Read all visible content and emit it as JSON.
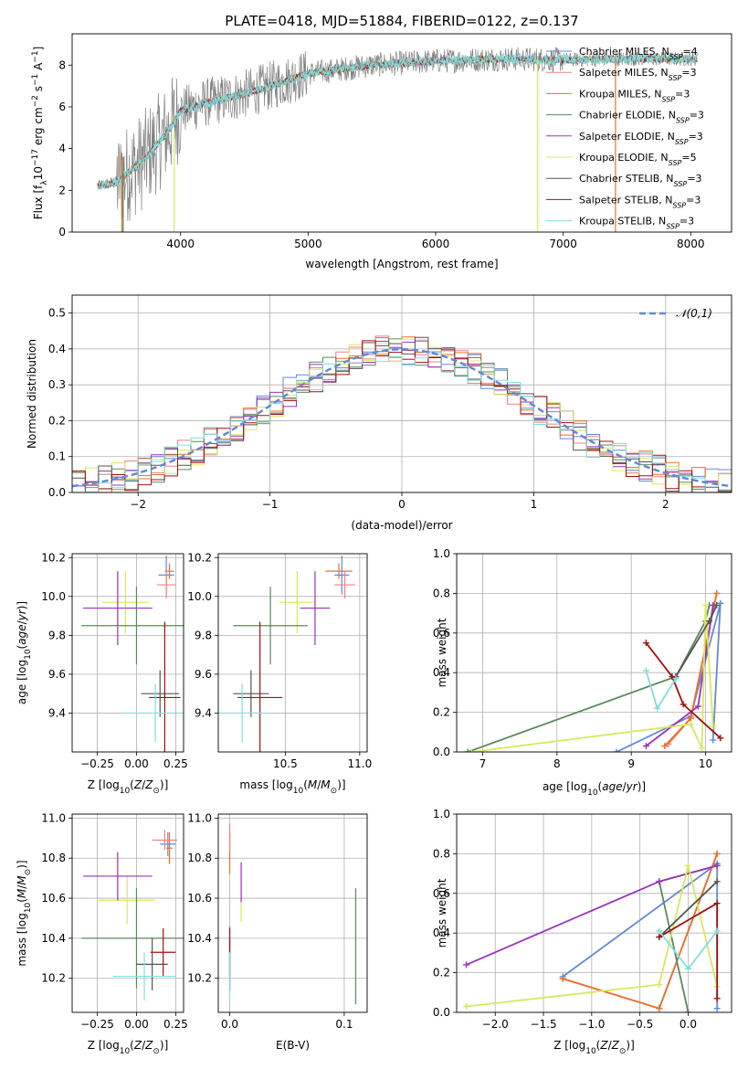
{
  "figure_title": "PLATE=0418, MJD=51884, FIBERID=0122, z=0.137",
  "models": [
    {
      "name": "Chabrier MILES, N",
      "sub": "SSP",
      "suffix": "=4",
      "color": "#6488d8"
    },
    {
      "name": "Salpeter MILES, N",
      "sub": "SSP",
      "suffix": "=3",
      "color": "#f08080"
    },
    {
      "name": "Kroupa MILES, N",
      "sub": "SSP",
      "suffix": "=3",
      "color": "#e8702a"
    },
    {
      "name": "Chabrier ELODIE, N",
      "sub": "SSP",
      "suffix": "=3",
      "color": "#5a8a5a"
    },
    {
      "name": "Salpeter ELODIE, N",
      "sub": "SSP",
      "suffix": "=3",
      "color": "#9933bb"
    },
    {
      "name": "Kroupa ELODIE, N",
      "sub": "SSP",
      "suffix": "=5",
      "color": "#d8e860"
    },
    {
      "name": "Chabrier STELIB, N",
      "sub": "SSP",
      "suffix": "=3",
      "color": "#555555"
    },
    {
      "name": "Salpeter STELIB, N",
      "sub": "SSP",
      "suffix": "=3",
      "color": "#a01010"
    },
    {
      "name": "Kroupa STELIB, N",
      "sub": "SSP",
      "suffix": "=3",
      "color": "#80dede"
    }
  ],
  "chart_data": [
    {
      "id": "spectrum",
      "type": "line",
      "xlabel": "wavelength [Angstrom, rest frame]",
      "ylabel": "Flux [f_λ 10^-17 erg cm^-2 s^-1 A^-1]",
      "xlim": [
        3150,
        8320
      ],
      "ylim": [
        0,
        9.5
      ],
      "xticks": [
        4000,
        5000,
        6000,
        7000,
        8000
      ],
      "yticks": [
        0,
        2,
        4,
        6,
        8
      ],
      "grid": false,
      "legend": "right",
      "continuum": {
        "x": [
          3350,
          3500,
          3700,
          3900,
          4000,
          4200,
          4500,
          4800,
          5000,
          5500,
          6000,
          6500,
          7000,
          7500,
          8000
        ],
        "y": [
          2.2,
          2.4,
          3.4,
          4.8,
          5.8,
          6.2,
          6.6,
          7.2,
          7.6,
          8.0,
          8.2,
          8.3,
          8.25,
          8.3,
          8.3
        ]
      },
      "spikes": [
        {
          "x": 3540,
          "ymin": 0,
          "ymax": 3.8,
          "color": "#e8702a"
        },
        {
          "x": 3550,
          "ymin": 0,
          "ymax": 3.6,
          "color": "#5a8a5a"
        },
        {
          "x": 3950,
          "ymin": 0,
          "ymax": 4.8,
          "color": "#d8e860"
        },
        {
          "x": 6800,
          "ymin": 0,
          "ymax": 8.3,
          "color": "#d8e860"
        },
        {
          "x": 7410,
          "ymin": 0,
          "ymax": 8.3,
          "color": "#e8702a"
        }
      ]
    },
    {
      "id": "residuals",
      "type": "histogram",
      "xlabel": "(data-model)/error",
      "ylabel": "Normed distribution",
      "xlim": [
        -2.5,
        2.5
      ],
      "ylim": [
        0,
        0.55
      ],
      "xticks": [
        -2,
        -1,
        0,
        1,
        2
      ],
      "yticks": [
        0.0,
        0.1,
        0.2,
        0.3,
        0.4,
        0.5
      ],
      "grid": true,
      "legend": "top-right",
      "legend_label": "𝒩(0,1)",
      "normal_curve": {
        "mean": 0,
        "sigma": 1,
        "color": "#6488d8"
      },
      "bin_width": 0.1
    },
    {
      "id": "age_vs_Z",
      "type": "errorbar",
      "xlabel": "Z [log10(Z/Z⊙)]",
      "ylabel": "age [log10(age/yr)]",
      "xlim": [
        -0.41,
        0.3
      ],
      "ylim": [
        9.2,
        10.22
      ],
      "xticks": [
        -0.25,
        0.0,
        0.25
      ],
      "yticks": [
        9.4,
        9.6,
        9.8,
        10.0,
        10.2
      ],
      "grid": true,
      "points": [
        {
          "x": 0.21,
          "xerr": 0.03,
          "y": 10.13,
          "yerr": 0.04,
          "color": "#e8702a"
        },
        {
          "x": 0.19,
          "xerr": 0.05,
          "y": 10.11,
          "yerr": 0.1,
          "color": "#6488d8"
        },
        {
          "x": 0.19,
          "xerr": 0.06,
          "y": 10.06,
          "yerr": 0.07,
          "color": "#f08080"
        },
        {
          "x": -0.07,
          "xerr": 0.15,
          "y": 9.97,
          "yerr": 0.16,
          "color": "#d8e860"
        },
        {
          "x": -0.12,
          "xerr": 0.22,
          "y": 9.94,
          "yerr": 0.19,
          "color": "#9933bb"
        },
        {
          "x": 0.0,
          "xerr": 0.35,
          "y": 9.85,
          "yerr": 0.2,
          "color": "#5a8a5a"
        },
        {
          "x": 0.15,
          "xerr": 0.12,
          "y": 9.5,
          "yerr": 0.12,
          "color": "#555555"
        },
        {
          "x": 0.18,
          "xerr": 0.1,
          "y": 9.48,
          "yerr": 0.39,
          "color": "#a01010"
        },
        {
          "x": 0.12,
          "xerr": 0.2,
          "y": 9.4,
          "yerr": 0.15,
          "color": "#80dede"
        }
      ]
    },
    {
      "id": "age_vs_mass",
      "type": "errorbar",
      "xlabel": "mass [log10(M/M⊙)]",
      "ylabel": "",
      "xlim": [
        10.05,
        11.05
      ],
      "ylim": [
        9.2,
        10.22
      ],
      "xticks": [
        10.5,
        11.0
      ],
      "yticks": [
        9.4,
        9.6,
        9.8,
        10.0,
        10.2
      ],
      "grid": true,
      "points": [
        {
          "x": 10.86,
          "xerr": 0.09,
          "y": 10.13,
          "yerr": 0.04,
          "color": "#e8702a"
        },
        {
          "x": 10.88,
          "xerr": 0.05,
          "y": 10.11,
          "yerr": 0.1,
          "color": "#6488d8"
        },
        {
          "x": 10.9,
          "xerr": 0.07,
          "y": 10.06,
          "yerr": 0.07,
          "color": "#f08080"
        },
        {
          "x": 10.58,
          "xerr": 0.12,
          "y": 9.97,
          "yerr": 0.16,
          "color": "#d8e860"
        },
        {
          "x": 10.7,
          "xerr": 0.1,
          "y": 9.94,
          "yerr": 0.19,
          "color": "#9933bb"
        },
        {
          "x": 10.4,
          "xerr": 0.25,
          "y": 9.85,
          "yerr": 0.2,
          "color": "#5a8a5a"
        },
        {
          "x": 10.27,
          "xerr": 0.12,
          "y": 9.5,
          "yerr": 0.12,
          "color": "#555555"
        },
        {
          "x": 10.33,
          "xerr": 0.15,
          "y": 9.48,
          "yerr": 0.39,
          "color": "#a01010"
        },
        {
          "x": 10.21,
          "xerr": 0.17,
          "y": 9.4,
          "yerr": 0.15,
          "color": "#80dede"
        }
      ]
    },
    {
      "id": "weight_vs_age",
      "type": "line",
      "xlabel": "age  [log10(age/yr)]",
      "ylabel": "mass weight",
      "xlim": [
        6.65,
        10.35
      ],
      "ylim": [
        0,
        1.0
      ],
      "xticks": [
        7,
        8,
        9,
        10
      ],
      "yticks": [
        0.0,
        0.2,
        0.4,
        0.6,
        0.8,
        1.0
      ],
      "grid": true,
      "series": [
        {
          "color": "#6488d8",
          "x": [
            8.8,
            9.8,
            10.2,
            10.1
          ],
          "y": [
            0.0,
            0.18,
            0.75,
            0.06
          ]
        },
        {
          "color": "#f08080",
          "x": [
            9.5,
            9.8,
            10.15
          ],
          "y": [
            0.04,
            0.17,
            0.8
          ]
        },
        {
          "color": "#e8702a",
          "x": [
            9.45,
            9.8,
            10.15
          ],
          "y": [
            0.03,
            0.17,
            0.8
          ]
        },
        {
          "color": "#5a8a5a",
          "x": [
            6.8,
            9.6,
            10.0,
            10.05
          ],
          "y": [
            0.0,
            0.38,
            0.66,
            0.74
          ]
        },
        {
          "color": "#9933bb",
          "x": [
            9.2,
            9.9,
            10.1
          ],
          "y": [
            0.03,
            0.23,
            0.74
          ]
        },
        {
          "color": "#d8e860",
          "x": [
            6.85,
            9.8,
            9.95,
            10.0,
            10.1
          ],
          "y": [
            0.0,
            0.14,
            0.02,
            0.74,
            0.13
          ]
        },
        {
          "color": "#555555",
          "x": [
            9.6,
            10.05,
            10.15
          ],
          "y": [
            0.38,
            0.66,
            0.74
          ]
        },
        {
          "color": "#a01010",
          "x": [
            9.2,
            9.55,
            9.7,
            10.2
          ],
          "y": [
            0.55,
            0.38,
            0.24,
            0.07
          ]
        },
        {
          "color": "#80dede",
          "x": [
            9.2,
            9.35,
            9.6
          ],
          "y": [
            0.41,
            0.22,
            0.37
          ]
        }
      ]
    },
    {
      "id": "mass_vs_Z",
      "type": "errorbar",
      "xlabel": "Z [log10(Z/Z⊙)]",
      "ylabel": "mass [log10(M/M⊙)]",
      "xlim": [
        -0.41,
        0.3
      ],
      "ylim": [
        10.03,
        11.02
      ],
      "xticks": [
        -0.25,
        0.0,
        0.25
      ],
      "yticks": [
        10.2,
        10.4,
        10.6,
        10.8,
        11.0
      ],
      "grid": true,
      "points": [
        {
          "x": 0.21,
          "xerr": 0.02,
          "y": 10.85,
          "yerr": 0.08,
          "color": "#e8702a"
        },
        {
          "x": 0.2,
          "xerr": 0.05,
          "y": 10.87,
          "yerr": 0.06,
          "color": "#6488d8"
        },
        {
          "x": 0.18,
          "xerr": 0.08,
          "y": 10.89,
          "yerr": 0.05,
          "color": "#f08080"
        },
        {
          "x": -0.06,
          "xerr": 0.18,
          "y": 10.59,
          "yerr": 0.12,
          "color": "#d8e860"
        },
        {
          "x": -0.12,
          "xerr": 0.22,
          "y": 10.71,
          "yerr": 0.12,
          "color": "#9933bb"
        },
        {
          "x": 0.0,
          "xerr": 0.35,
          "y": 10.4,
          "yerr": 0.25,
          "color": "#5a8a5a"
        },
        {
          "x": 0.1,
          "xerr": 0.1,
          "y": 10.27,
          "yerr": 0.13,
          "color": "#555555"
        },
        {
          "x": 0.17,
          "xerr": 0.08,
          "y": 10.33,
          "yerr": 0.12,
          "color": "#a01010"
        },
        {
          "x": 0.05,
          "xerr": 0.2,
          "y": 10.21,
          "yerr": 0.12,
          "color": "#80dede"
        }
      ]
    },
    {
      "id": "mass_vs_ebv",
      "type": "errorbar",
      "xlabel": "E(B-V)",
      "ylabel": "",
      "xlim": [
        -0.01,
        0.12
      ],
      "ylim": [
        10.03,
        11.02
      ],
      "xticks": [
        0.0,
        0.1
      ],
      "yticks": [
        10.2,
        10.4,
        10.6,
        10.8,
        11.0
      ],
      "grid": true,
      "points": [
        {
          "x": 0.0,
          "xerr": 0,
          "y": 10.82,
          "yerr": 0.1,
          "color": "#e8702a"
        },
        {
          "x": 0.0,
          "xerr": 0,
          "y": 10.9,
          "yerr": 0.07,
          "color": "#f08080"
        },
        {
          "x": 0.0,
          "xerr": 0,
          "y": 10.3,
          "yerr": 0.16,
          "color": "#6488d8"
        },
        {
          "x": 0.01,
          "xerr": 0,
          "y": 10.6,
          "yerr": 0.12,
          "color": "#d8e860"
        },
        {
          "x": 0.01,
          "xerr": 0,
          "y": 10.68,
          "yerr": 0.1,
          "color": "#9933bb"
        },
        {
          "x": 0.11,
          "xerr": 0,
          "y": 10.36,
          "yerr": 0.29,
          "color": "#5a8a5a"
        },
        {
          "x": 0.0,
          "xerr": 0,
          "y": 10.27,
          "yerr": 0.13,
          "color": "#555555"
        },
        {
          "x": 0.0,
          "xerr": 0,
          "y": 10.33,
          "yerr": 0.12,
          "color": "#a01010"
        },
        {
          "x": 0.0,
          "xerr": 0,
          "y": 10.21,
          "yerr": 0.12,
          "color": "#80dede"
        }
      ]
    },
    {
      "id": "weight_vs_Z",
      "type": "line",
      "xlabel": "Z [log10(Z/Z⊙)]",
      "ylabel": "mass weight",
      "xlim": [
        -2.4,
        0.45
      ],
      "ylim": [
        0,
        1.0
      ],
      "xticks": [
        -2.0,
        -1.5,
        -1.0,
        -0.5,
        0.0
      ],
      "yticks": [
        0.0,
        0.2,
        0.4,
        0.6,
        0.8,
        1.0
      ],
      "grid": true,
      "series": [
        {
          "color": "#6488d8",
          "x": [
            -1.3,
            0.3,
            0.3
          ],
          "y": [
            0.18,
            0.75,
            0.02
          ]
        },
        {
          "color": "#f08080",
          "x": [
            -1.3,
            -0.3,
            0.3
          ],
          "y": [
            0.17,
            0.02,
            0.8
          ]
        },
        {
          "color": "#e8702a",
          "x": [
            -1.3,
            -0.3,
            0.3
          ],
          "y": [
            0.17,
            0.02,
            0.8
          ]
        },
        {
          "color": "#5a8a5a",
          "x": [
            0.0,
            -0.3,
            0.3
          ],
          "y": [
            0.0,
            0.66,
            0.74
          ]
        },
        {
          "color": "#9933bb",
          "x": [
            -2.3,
            -0.3,
            0.3
          ],
          "y": [
            0.24,
            0.66,
            0.74
          ]
        },
        {
          "color": "#d8e860",
          "x": [
            -2.3,
            -0.3,
            0.0,
            0.3
          ],
          "y": [
            0.03,
            0.14,
            0.74,
            0.13
          ]
        },
        {
          "color": "#555555",
          "x": [
            -0.3,
            0.3
          ],
          "y": [
            0.38,
            0.66
          ]
        },
        {
          "color": "#a01010",
          "x": [
            -0.3,
            0.3,
            0.3
          ],
          "y": [
            0.38,
            0.55,
            0.07
          ]
        },
        {
          "color": "#80dede",
          "x": [
            -0.3,
            0.0,
            0.3
          ],
          "y": [
            0.41,
            0.22,
            0.41
          ]
        }
      ]
    }
  ]
}
